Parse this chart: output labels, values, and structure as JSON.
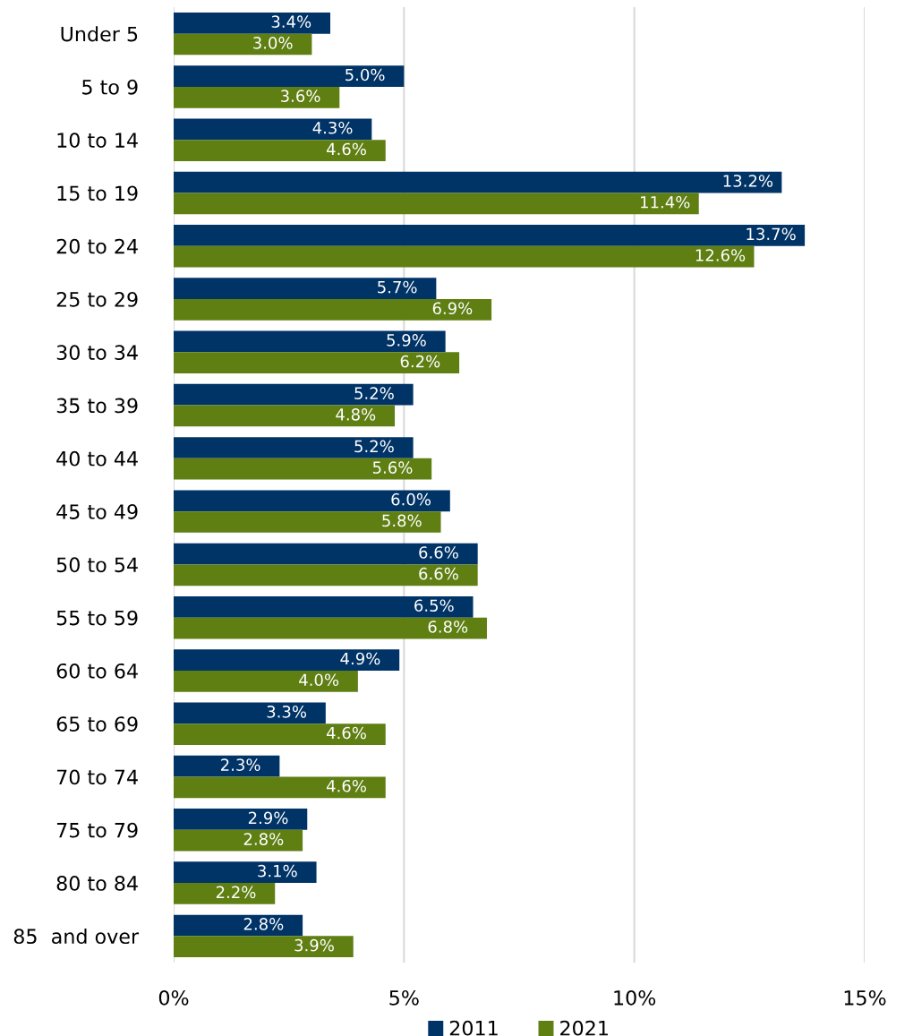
{
  "chart_data": {
    "type": "bar",
    "orientation": "horizontal",
    "categories": [
      "Under 5",
      "5 to 9",
      "10 to 14",
      "15 to 19",
      "20 to 24",
      "25 to 29",
      "30 to 34",
      "35 to 39",
      "40 to 44",
      "45 to 49",
      "50 to 54",
      "55 to 59",
      "60 to 64",
      "65 to 69",
      "70 to 74",
      "75 to 79",
      "80 to 84",
      "85  and over"
    ],
    "series": [
      {
        "name": "2011",
        "color": "#003366",
        "values": [
          3.4,
          5.0,
          4.3,
          13.2,
          13.7,
          5.7,
          5.9,
          5.2,
          5.2,
          6.0,
          6.6,
          6.5,
          4.9,
          3.3,
          2.3,
          2.9,
          3.1,
          2.8
        ],
        "value_labels": [
          "3.4%",
          "5.0%",
          "4.3%",
          "13.2%",
          "13.7%",
          "5.7%",
          "5.9%",
          "5.2%",
          "5.2%",
          "6.0%",
          "6.6%",
          "6.5%",
          "4.9%",
          "3.3%",
          "2.3%",
          "2.9%",
          "3.1%",
          "2.8%"
        ]
      },
      {
        "name": "2021",
        "color": "#5f7f13",
        "values": [
          3.0,
          3.6,
          4.6,
          11.4,
          12.6,
          6.9,
          6.2,
          4.8,
          5.6,
          5.8,
          6.6,
          6.8,
          4.0,
          4.6,
          4.6,
          2.8,
          2.2,
          3.9
        ],
        "value_labels": [
          "3.0%",
          "3.6%",
          "4.6%",
          "11.4%",
          "12.6%",
          "6.9%",
          "6.2%",
          "4.8%",
          "5.6%",
          "5.8%",
          "6.6%",
          "6.8%",
          "4.0%",
          "4.6%",
          "4.6%",
          "2.8%",
          "2.2%",
          "3.9%"
        ]
      }
    ],
    "xlim": [
      0,
      15
    ],
    "xticks": [
      {
        "value": 0,
        "label": "0%"
      },
      {
        "value": 5,
        "label": "5%"
      },
      {
        "value": 10,
        "label": "10%"
      },
      {
        "value": 15,
        "label": "15%"
      }
    ],
    "grid": "x",
    "legend": "bottom"
  }
}
